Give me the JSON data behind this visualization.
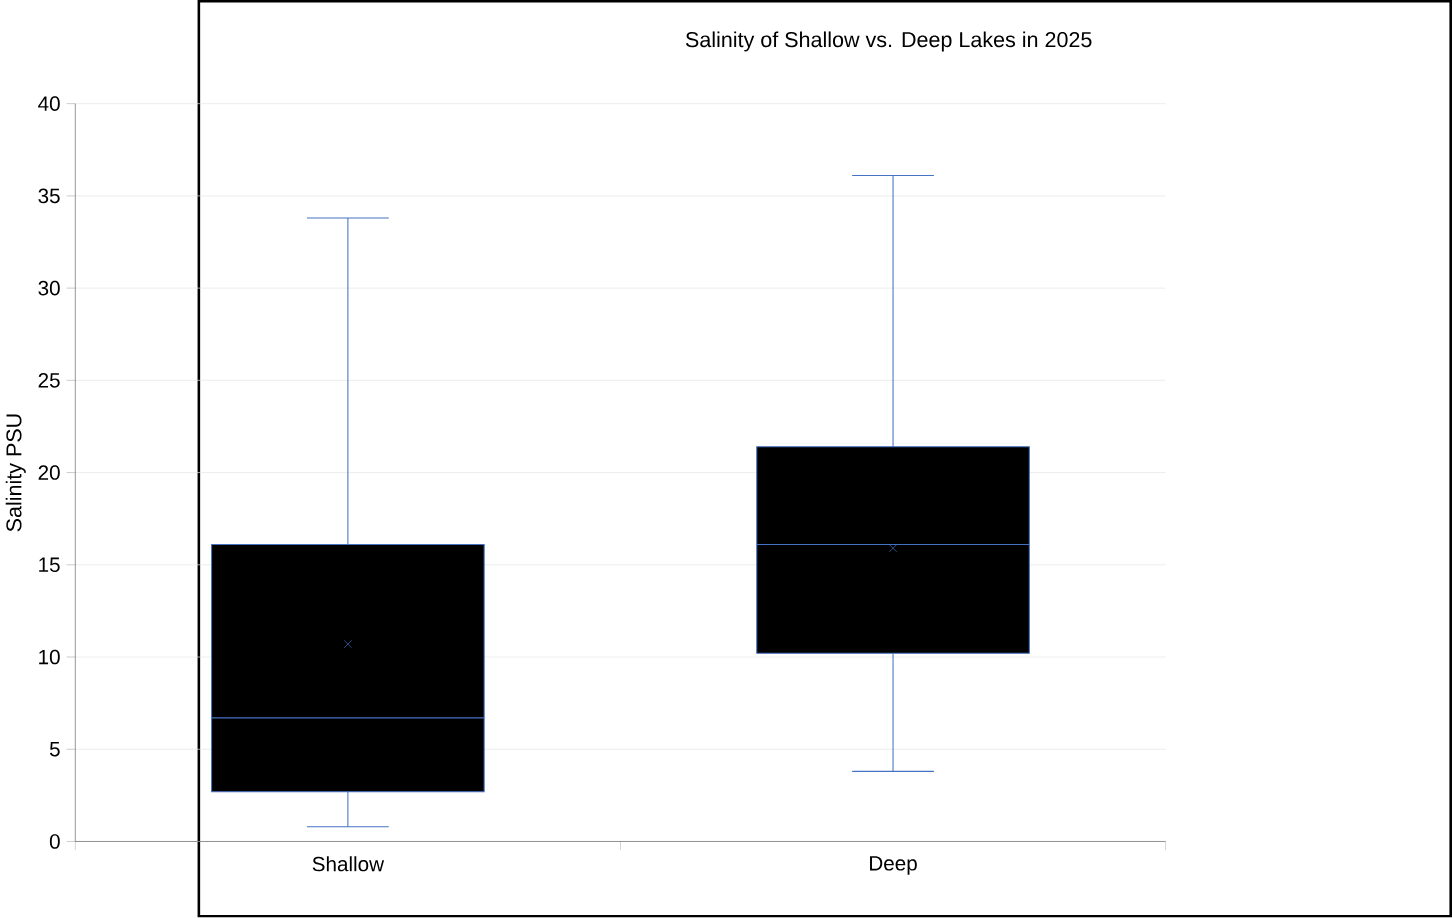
{
  "chart_data": {
    "type": "box",
    "title": "Salinity of Shallow vs. Deep Lakes in 2025",
    "ylabel": "Salinity PSU",
    "categories": [
      "Shallow",
      "Deep"
    ],
    "boxes": [
      {
        "low": 0.8,
        "q1": 2.7,
        "median": 6.7,
        "q3": 16.1,
        "high": 33.8,
        "mean": 10.7
      },
      {
        "low": 3.8,
        "q1": 10.2,
        "median": 16.1,
        "q3": 21.4,
        "high": 36.1,
        "mean": 15.9
      }
    ],
    "color": "#4472c4",
    "ylim": [
      0,
      40
    ],
    "yticks": [
      0,
      5,
      10,
      15,
      20,
      25,
      30,
      35,
      40
    ],
    "grid": "y",
    "marker": "cross"
  }
}
